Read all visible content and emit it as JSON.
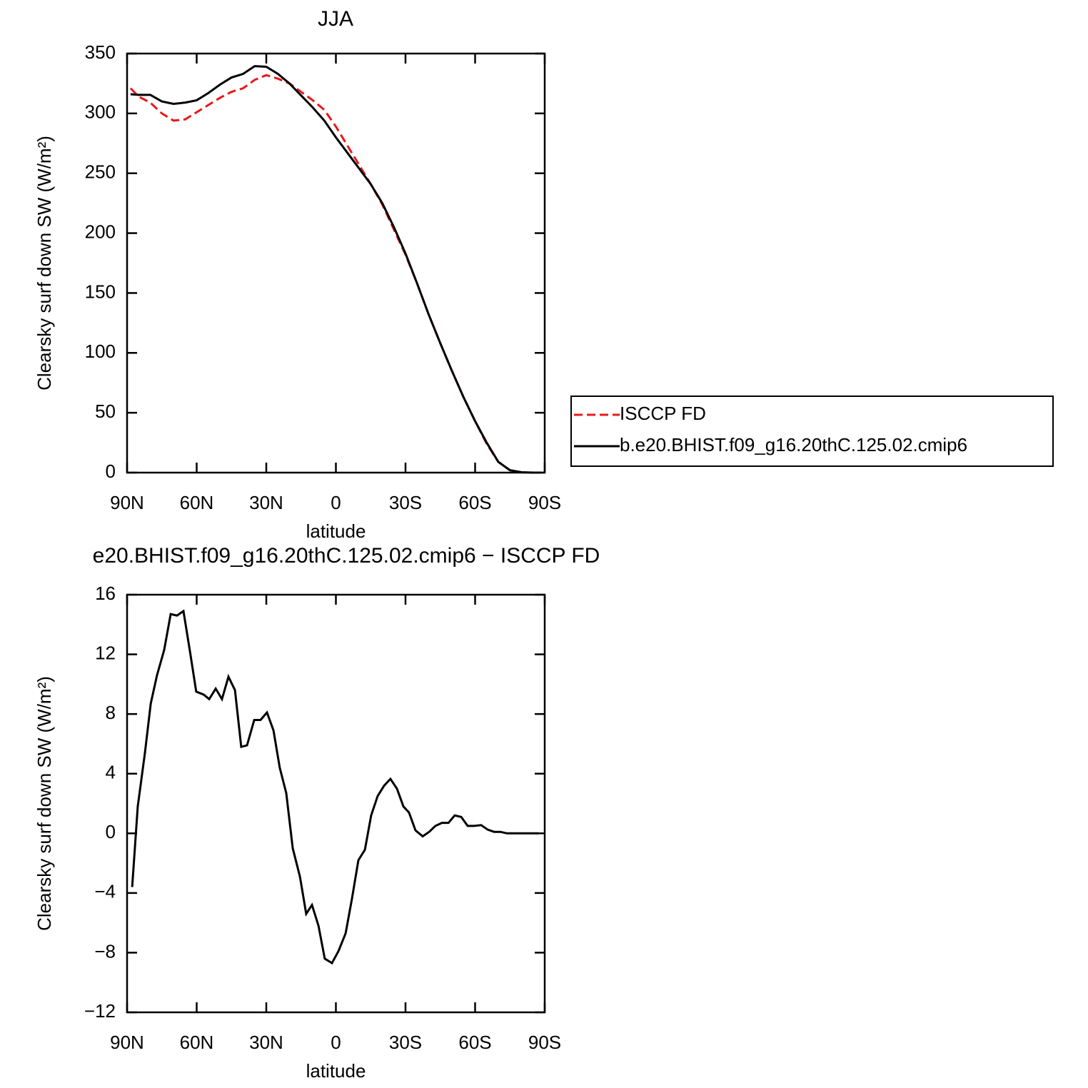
{
  "chart_data": [
    {
      "type": "line",
      "title": "JJA",
      "xlabel": "latitude",
      "ylabel": "Clearsky surf down SW (W/m²)",
      "x": [
        88.5,
        85,
        80,
        75,
        70,
        65,
        60,
        55,
        50,
        45,
        40,
        35,
        30,
        25,
        20,
        15,
        10,
        5,
        0,
        -5,
        -10,
        -15,
        -20,
        -25,
        -30,
        -35,
        -40,
        -45,
        -50,
        -55,
        -60,
        -65,
        -70,
        -75,
        -80,
        -85,
        -88.5
      ],
      "xlim": [
        90,
        -90
      ],
      "xticks": [
        {
          "value": 90,
          "label": "90N"
        },
        {
          "value": 60,
          "label": "60N"
        },
        {
          "value": 30,
          "label": "30N"
        },
        0,
        {
          "value": -30,
          "label": "30S"
        },
        {
          "value": -60,
          "label": "60S"
        },
        {
          "value": -90,
          "label": "90S"
        }
      ],
      "ylim": [
        0,
        350
      ],
      "yticks": [
        0,
        50,
        100,
        150,
        200,
        250,
        300,
        350
      ],
      "legend": "right",
      "series": [
        {
          "name": "ISCCP FD",
          "color": "#e8191c",
          "dashed": true,
          "values": [
            321,
            314,
            309,
            300,
            294,
            295,
            301,
            307,
            313,
            318,
            321,
            328,
            332,
            329,
            325,
            318,
            311,
            303,
            289,
            273,
            257,
            241,
            224,
            203,
            182,
            158,
            132,
            108,
            85,
            63,
            43,
            24,
            9,
            2,
            0.2,
            0,
            0
          ]
        },
        {
          "name": "b.e20.BHIST.f09_g16.20thC.125.02.cmip6",
          "color": "#000000",
          "dashed": false,
          "values": [
            316,
            315.5,
            315.5,
            310,
            308,
            309,
            311,
            317,
            324,
            330,
            333,
            339.5,
            339,
            333,
            325,
            315,
            305,
            294,
            280,
            267,
            254,
            241,
            225,
            205,
            183,
            158,
            132,
            108,
            85,
            63,
            43,
            25,
            9,
            2,
            0.3,
            0,
            0
          ]
        }
      ]
    },
    {
      "type": "line",
      "title": "e20.BHIST.f09_g16.20thC.125.02.cmip6 − ISCCP FD",
      "xlabel": "latitude",
      "ylabel": "Clearsky surf down SW (W/m²)",
      "x": [
        87.8,
        85.4,
        82.3,
        79.8,
        77.1,
        74,
        71.2,
        68.5,
        65.7,
        62.9,
        60.2,
        57,
        54.6,
        51.8,
        49.1,
        46.3,
        43.5,
        40.8,
        38.3,
        35.2,
        32.5,
        29.7,
        26.9,
        24.2,
        21.4,
        18.6,
        15.5,
        12.8,
        10.3,
        7.5,
        4.8,
        1.7,
        -1.1,
        -4.2,
        -6.9,
        -9.7,
        -12.5,
        -15.2,
        -18,
        -20.8,
        -23.5,
        -26.3,
        -29.1,
        -31.5,
        -34.3,
        -37.4,
        -40.2,
        -42.9,
        -45.7,
        -48.5,
        -51.2,
        -54,
        -56.8,
        -59.5,
        -62.6,
        -65.4,
        -68.2,
        -70.9,
        -73.7,
        -76.5,
        -79.2,
        -82,
        -84.8,
        -87.5
      ],
      "xlim": [
        90,
        -90
      ],
      "xticks": [
        {
          "value": 90,
          "label": "90N"
        },
        {
          "value": 60,
          "label": "60N"
        },
        {
          "value": 30,
          "label": "30N"
        },
        0,
        {
          "value": -30,
          "label": "30S"
        },
        {
          "value": -60,
          "label": "60S"
        },
        {
          "value": -90,
          "label": "90S"
        }
      ],
      "ylim": [
        -12,
        16
      ],
      "yticks": [
        {
          "value": -12,
          "label": "−12"
        },
        {
          "value": -8,
          "label": "−8"
        },
        {
          "value": -4,
          "label": "−4"
        },
        0,
        4,
        8,
        12,
        16
      ],
      "series": [
        {
          "color": "#000000",
          "dashed": false,
          "values": [
            -3.6,
            1.8,
            5.4,
            8.7,
            10.6,
            12.3,
            14.7,
            14.6,
            14.9,
            12.2,
            9.5,
            9.3,
            9,
            9.7,
            9,
            10.5,
            9.6,
            5.8,
            5.9,
            7.6,
            7.6,
            8.1,
            6.9,
            4.4,
            2.7,
            -1,
            -2.9,
            -5.4,
            -4.8,
            -6.2,
            -8.4,
            -8.7,
            -7.9,
            -6.7,
            -4.4,
            -1.8,
            -1.1,
            1.2,
            2.5,
            3.2,
            3.65,
            3,
            1.8,
            1.4,
            0.2,
            -0.2,
            0.1,
            0.5,
            0.7,
            0.7,
            1.2,
            1.1,
            0.5,
            0.5,
            0.55,
            0.25,
            0.1,
            0.1,
            0,
            0,
            0,
            0,
            0,
            0
          ]
        }
      ]
    }
  ]
}
